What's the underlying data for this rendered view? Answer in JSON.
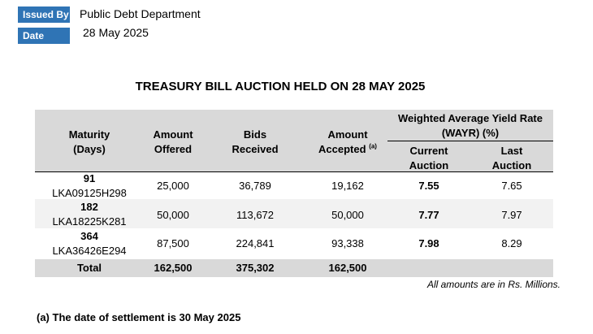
{
  "meta": {
    "issued_by_label": "Issued By",
    "issued_by_value": "Public Debt Department",
    "date_label": "Date",
    "date_value": "28 May 2025"
  },
  "title": "TREASURY BILL AUCTION HELD ON 28 MAY 2025",
  "table": {
    "headers": {
      "maturity_1": "Maturity",
      "maturity_2": "(Days)",
      "offered_1": "Amount",
      "offered_2": "Offered",
      "bids_1": "Bids",
      "bids_2": "Received",
      "accepted_1": "Amount",
      "accepted_2": "Accepted",
      "accepted_sup": "(a)",
      "wayr_1": "Weighted Average Yield Rate",
      "wayr_2": "(WAYR) (%)",
      "current_1": "Current",
      "current_2": "Auction",
      "last_1": "Last",
      "last_2": "Auction"
    },
    "rows": [
      {
        "days": "91",
        "code": "LKA09125H298",
        "offered": "25,000",
        "bids": "36,789",
        "accepted": "19,162",
        "current": "7.55",
        "last": "7.65"
      },
      {
        "days": "182",
        "code": "LKA18225K281",
        "offered": "50,000",
        "bids": "113,672",
        "accepted": "50,000",
        "current": "7.77",
        "last": "7.97"
      },
      {
        "days": "364",
        "code": "LKA36426E294",
        "offered": "87,500",
        "bids": "224,841",
        "accepted": "93,338",
        "current": "7.98",
        "last": "8.29"
      }
    ],
    "total": {
      "label": "Total",
      "offered": "162,500",
      "bids": "375,302",
      "accepted": "162,500"
    }
  },
  "amounts_note": "All amounts are in Rs. Millions.",
  "footnote": "(a) The date of settlement is 30 May 2025"
}
